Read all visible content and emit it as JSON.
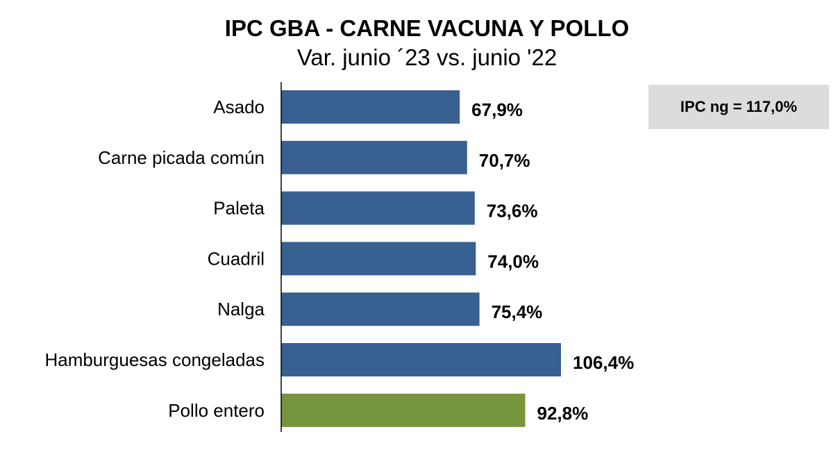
{
  "chart_data": {
    "type": "bar",
    "orientation": "horizontal",
    "title": "IPC GBA - CARNE VACUNA Y POLLO",
    "subtitle": "Var. junio ´23 vs. junio '22",
    "xlabel": "",
    "ylabel": "",
    "unit": "%",
    "xlim": [
      0,
      106.4
    ],
    "grid": false,
    "categories": [
      "Asado",
      "Carne picada común",
      "Paleta",
      "Cuadril",
      "Nalga",
      "Hamburguesas congeladas",
      "Pollo entero"
    ],
    "values": [
      67.9,
      70.7,
      73.6,
      74.0,
      75.4,
      106.4,
      92.8
    ],
    "value_labels": [
      "67,9%",
      "70,7%",
      "73,6%",
      "74,0%",
      "75,4%",
      "106,4%",
      "92,8%"
    ],
    "bar_colors": [
      "#386091",
      "#386091",
      "#386091",
      "#386091",
      "#386091",
      "#386091",
      "#77953d"
    ],
    "annotation": "IPC ng = 117,0%"
  },
  "colors": {
    "beef": "#386091",
    "chicken": "#77953d",
    "annotation_bg": "#dcdcdc"
  }
}
